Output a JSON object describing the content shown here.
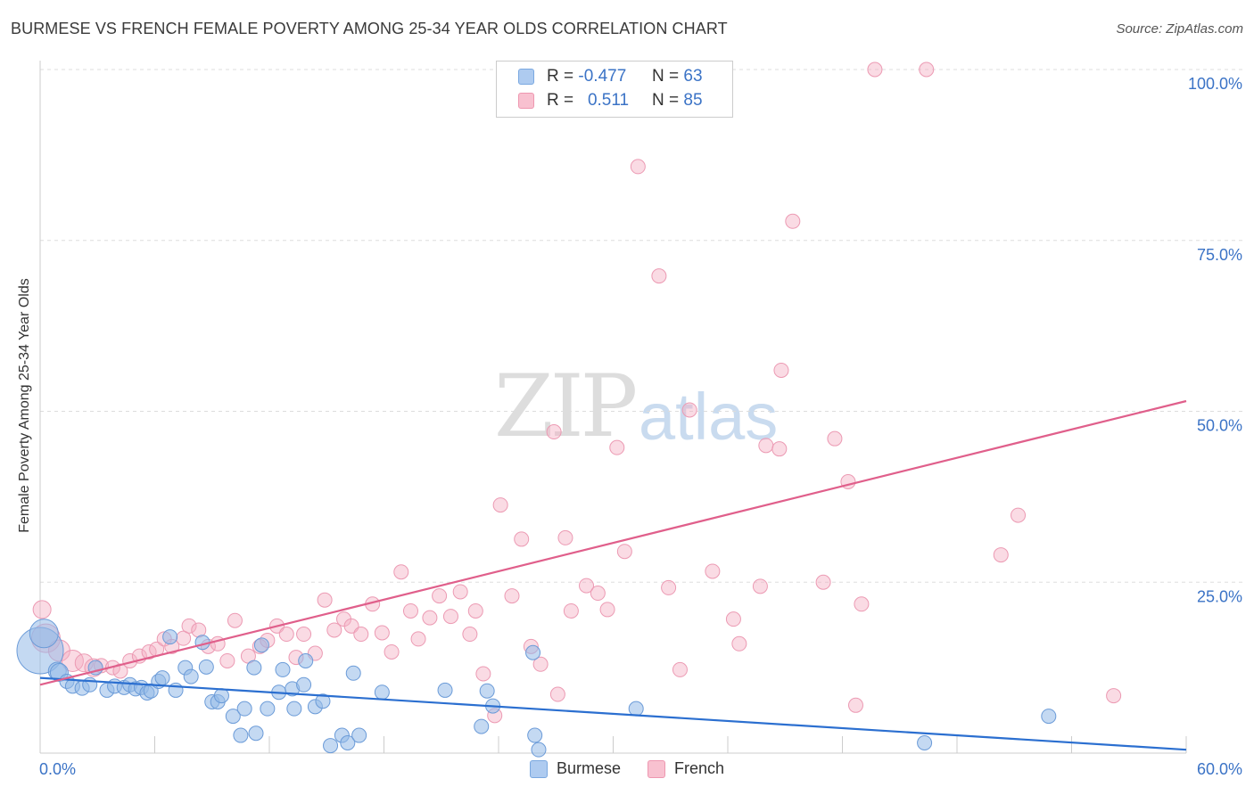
{
  "title": "BURMESE VS FRENCH FEMALE POVERTY AMONG 25-34 YEAR OLDS CORRELATION CHART",
  "source": "Source: ZipAtlas.com",
  "watermark": {
    "part1": "ZIP",
    "part2": "atlas"
  },
  "legend": {
    "r_label": "R =",
    "n_label": "N =",
    "rows": [
      {
        "r_value": "-0.477",
        "n_value": "63",
        "color": "#aecbf0",
        "border": "#7aa8e0"
      },
      {
        "r_value": "0.511",
        "n_value": "85",
        "color": "#f8c1d0",
        "border": "#ee97b0"
      }
    ]
  },
  "bottom_legend": [
    {
      "label": "Burmese",
      "color": "#aecbf0",
      "border": "#7aa8e0"
    },
    {
      "label": "French",
      "color": "#f8c1d0",
      "border": "#ee97b0"
    }
  ],
  "colors": {
    "burmese_fill": "rgba(147,186,232,0.55)",
    "burmese_stroke": "#6b9bd8",
    "burmese_line": "#2b6fd0",
    "french_fill": "rgba(245,176,196,0.45)",
    "french_stroke": "#ec9ab3",
    "french_line": "#e05f8b",
    "tick_text": "#3b73c6",
    "grid": "#dddddd"
  },
  "chart_data": {
    "type": "scatter",
    "title": "BURMESE VS FRENCH FEMALE POVERTY AMONG 25-34 YEAR OLDS CORRELATION CHART",
    "xlabel": "",
    "ylabel": "Female Poverty Among 25-34 Year Olds",
    "xlim": [
      0,
      60
    ],
    "ylim": [
      0,
      100
    ],
    "x_tick_labels": [
      "0.0%",
      "60.0%"
    ],
    "y_tick_labels": [
      "100.0%",
      "75.0%",
      "50.0%",
      "25.0%"
    ],
    "y_ticks": [
      100,
      75,
      50,
      25
    ],
    "grid": true,
    "legend_position": "top-center",
    "series": [
      {
        "name": "Burmese",
        "r": -0.477,
        "n": 63,
        "trend": {
          "x": [
            0,
            60
          ],
          "y": [
            11.0,
            0.5
          ]
        },
        "points": [
          [
            0.0,
            15.0,
            26
          ],
          [
            0.2,
            17.5,
            16
          ],
          [
            0.9,
            12.0,
            10
          ],
          [
            1.0,
            11.8,
            10
          ],
          [
            1.4,
            10.5,
            8
          ],
          [
            1.7,
            9.8,
            8
          ],
          [
            2.2,
            9.5,
            8
          ],
          [
            2.6,
            10.0,
            8
          ],
          [
            2.9,
            12.5,
            8
          ],
          [
            3.5,
            9.2,
            8
          ],
          [
            3.9,
            9.8,
            8
          ],
          [
            4.4,
            9.6,
            8
          ],
          [
            4.7,
            10.0,
            8
          ],
          [
            5.0,
            9.4,
            8
          ],
          [
            5.3,
            9.6,
            8
          ],
          [
            5.6,
            8.8,
            8
          ],
          [
            5.8,
            9.1,
            8
          ],
          [
            6.2,
            10.5,
            8
          ],
          [
            6.4,
            11.0,
            8
          ],
          [
            6.8,
            17.0,
            8
          ],
          [
            7.1,
            9.2,
            8
          ],
          [
            7.6,
            12.5,
            8
          ],
          [
            7.9,
            11.2,
            8
          ],
          [
            8.5,
            16.2,
            8
          ],
          [
            8.7,
            12.6,
            8
          ],
          [
            9.0,
            7.5,
            8
          ],
          [
            9.3,
            7.5,
            8
          ],
          [
            9.5,
            8.4,
            8
          ],
          [
            10.1,
            5.4,
            8
          ],
          [
            10.5,
            2.6,
            8
          ],
          [
            10.7,
            6.5,
            8
          ],
          [
            11.2,
            12.5,
            8
          ],
          [
            11.3,
            2.9,
            8
          ],
          [
            11.6,
            15.8,
            8
          ],
          [
            11.9,
            6.5,
            8
          ],
          [
            12.5,
            8.9,
            8
          ],
          [
            12.7,
            12.2,
            8
          ],
          [
            13.2,
            9.4,
            8
          ],
          [
            13.3,
            6.5,
            8
          ],
          [
            13.8,
            10.0,
            8
          ],
          [
            13.9,
            13.5,
            8
          ],
          [
            14.4,
            6.8,
            8
          ],
          [
            14.8,
            7.6,
            8
          ],
          [
            15.2,
            1.1,
            8
          ],
          [
            15.8,
            2.6,
            8
          ],
          [
            16.1,
            1.5,
            8
          ],
          [
            16.4,
            11.7,
            8
          ],
          [
            16.7,
            2.6,
            8
          ],
          [
            17.9,
            8.9,
            8
          ],
          [
            21.2,
            9.2,
            8
          ],
          [
            23.1,
            3.9,
            8
          ],
          [
            23.4,
            9.1,
            8
          ],
          [
            23.7,
            6.9,
            8
          ],
          [
            25.8,
            14.7,
            8
          ],
          [
            25.9,
            2.6,
            8
          ],
          [
            26.1,
            0.5,
            8
          ],
          [
            31.2,
            6.5,
            8
          ],
          [
            46.3,
            1.5,
            8
          ],
          [
            52.8,
            5.4,
            8
          ]
        ]
      },
      {
        "name": "French",
        "r": 0.511,
        "n": 85,
        "trend": {
          "x": [
            0,
            60
          ],
          "y": [
            10.0,
            51.5
          ]
        },
        "points": [
          [
            0.1,
            21.0,
            10
          ],
          [
            0.3,
            16.8,
            16
          ],
          [
            1.0,
            15.0,
            12
          ],
          [
            1.7,
            13.5,
            12
          ],
          [
            2.3,
            13.2,
            10
          ],
          [
            2.8,
            12.5,
            10
          ],
          [
            3.2,
            12.8,
            8
          ],
          [
            3.8,
            12.5,
            8
          ],
          [
            4.2,
            12.0,
            8
          ],
          [
            4.7,
            13.5,
            8
          ],
          [
            5.2,
            14.2,
            8
          ],
          [
            5.7,
            14.8,
            8
          ],
          [
            6.1,
            15.2,
            8
          ],
          [
            6.5,
            16.7,
            8
          ],
          [
            6.9,
            15.6,
            8
          ],
          [
            7.5,
            16.8,
            8
          ],
          [
            7.8,
            18.6,
            8
          ],
          [
            8.3,
            18.0,
            8
          ],
          [
            8.8,
            15.6,
            8
          ],
          [
            9.3,
            16.0,
            8
          ],
          [
            9.8,
            13.5,
            8
          ],
          [
            10.2,
            19.4,
            8
          ],
          [
            10.9,
            14.2,
            8
          ],
          [
            11.5,
            15.6,
            8
          ],
          [
            11.9,
            16.5,
            8
          ],
          [
            12.4,
            18.6,
            8
          ],
          [
            12.9,
            17.4,
            8
          ],
          [
            13.4,
            14.0,
            8
          ],
          [
            13.8,
            17.4,
            8
          ],
          [
            14.4,
            14.6,
            8
          ],
          [
            14.9,
            22.4,
            8
          ],
          [
            15.4,
            18.0,
            8
          ],
          [
            15.9,
            19.6,
            8
          ],
          [
            16.3,
            18.6,
            8
          ],
          [
            16.8,
            17.4,
            8
          ],
          [
            17.4,
            21.8,
            8
          ],
          [
            17.9,
            17.6,
            8
          ],
          [
            18.4,
            14.8,
            8
          ],
          [
            18.9,
            26.5,
            8
          ],
          [
            19.4,
            20.8,
            8
          ],
          [
            19.8,
            16.7,
            8
          ],
          [
            20.4,
            19.8,
            8
          ],
          [
            20.9,
            23.0,
            8
          ],
          [
            21.5,
            20.0,
            8
          ],
          [
            22.0,
            23.6,
            8
          ],
          [
            22.5,
            17.4,
            8
          ],
          [
            22.8,
            20.8,
            8
          ],
          [
            23.2,
            11.6,
            8
          ],
          [
            23.8,
            5.5,
            8
          ],
          [
            24.1,
            36.3,
            8
          ],
          [
            24.7,
            23.0,
            8
          ],
          [
            25.2,
            31.3,
            8
          ],
          [
            25.7,
            15.6,
            8
          ],
          [
            26.2,
            13.0,
            8
          ],
          [
            26.9,
            47.0,
            8
          ],
          [
            27.1,
            8.6,
            8
          ],
          [
            27.5,
            31.5,
            8
          ],
          [
            27.8,
            20.8,
            8
          ],
          [
            28.6,
            24.5,
            8
          ],
          [
            29.2,
            23.4,
            8
          ],
          [
            29.7,
            21.0,
            8
          ],
          [
            30.2,
            44.7,
            8
          ],
          [
            30.6,
            29.5,
            8
          ],
          [
            31.3,
            85.8,
            8
          ],
          [
            32.4,
            69.8,
            8
          ],
          [
            32.9,
            24.2,
            8
          ],
          [
            33.5,
            12.2,
            8
          ],
          [
            34.0,
            50.2,
            8
          ],
          [
            35.2,
            26.6,
            8
          ],
          [
            36.3,
            19.6,
            8
          ],
          [
            36.6,
            16.0,
            8
          ],
          [
            37.7,
            24.4,
            8
          ],
          [
            38.0,
            45.0,
            8
          ],
          [
            38.8,
            56.0,
            8
          ],
          [
            38.7,
            44.5,
            8
          ],
          [
            39.4,
            77.8,
            8
          ],
          [
            41.0,
            25.0,
            8
          ],
          [
            41.6,
            46.0,
            8
          ],
          [
            42.3,
            39.7,
            8
          ],
          [
            42.7,
            7.0,
            8
          ],
          [
            43.0,
            21.8,
            8
          ],
          [
            43.7,
            100.0,
            8
          ],
          [
            46.4,
            100.0,
            8
          ],
          [
            50.3,
            29.0,
            8
          ],
          [
            51.2,
            34.8,
            8
          ],
          [
            56.2,
            8.4,
            8
          ]
        ]
      }
    ]
  }
}
